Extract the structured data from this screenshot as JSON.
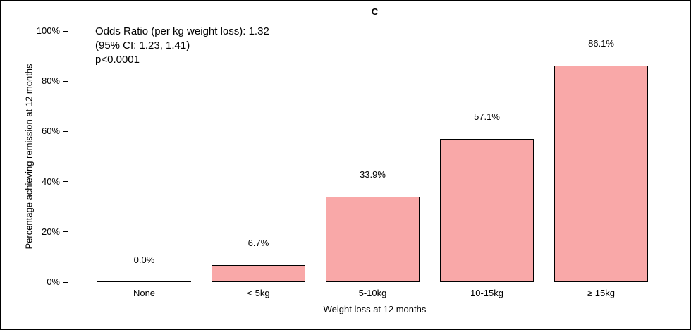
{
  "chart_data": {
    "type": "bar",
    "title": "C",
    "categories": [
      "None",
      "< 5kg",
      "5-10kg",
      "10-15kg",
      "≥ 15kg"
    ],
    "values": [
      0.0,
      6.7,
      33.9,
      57.1,
      86.1
    ],
    "value_labels": [
      "0.0%",
      "6.7%",
      "33.9%",
      "57.1%",
      "86.1%"
    ],
    "xlabel": "Weight loss at 12 months",
    "ylabel": "Percentage achieving remission at 12 months",
    "ylim": [
      0,
      100
    ],
    "yticks": [
      0,
      20,
      40,
      60,
      80,
      100
    ],
    "ytick_labels": [
      "0%",
      "20%",
      "40%",
      "60%",
      "80%",
      "100%"
    ],
    "bar_color": "#F9A8A8",
    "bar_border_color": "#000000",
    "legend": "none",
    "grid": "off",
    "annotation": [
      "Odds Ratio (per kg weight loss): 1.32",
      "(95% CI: 1.23, 1.41)",
      "p<0.0001"
    ]
  }
}
